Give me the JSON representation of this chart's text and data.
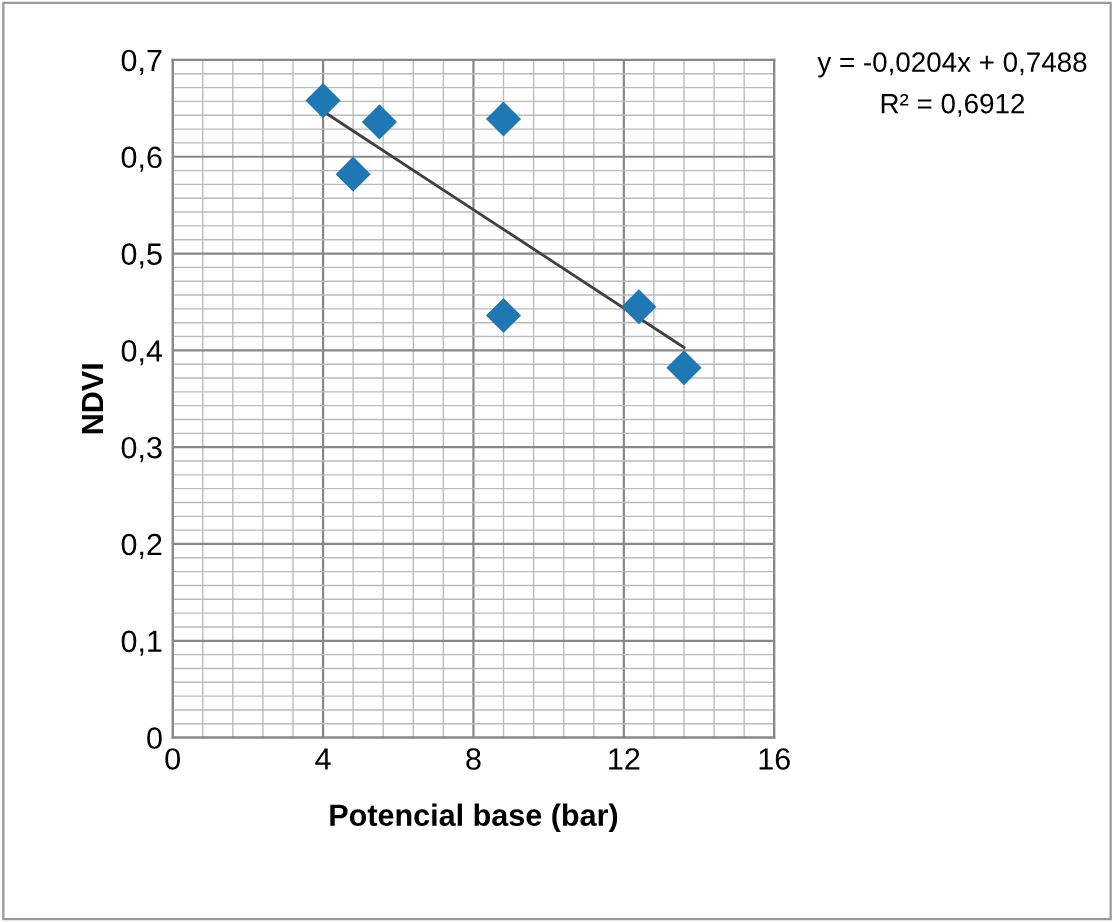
{
  "chart_data": {
    "type": "scatter",
    "xlabel": "Potencial base (bar)",
    "ylabel": "NDVI",
    "series": [
      {
        "color": "#1f77b4",
        "marker": "diamond",
        "x": [
          4.0,
          4.8,
          5.5,
          8.8,
          8.8,
          12.4,
          13.6
        ],
        "values": [
          0.658,
          0.582,
          0.636,
          0.639,
          0.436,
          0.445,
          0.382
        ]
      },
      {
        "type": "line",
        "color": "#404040",
        "marker": "none",
        "x": [
          4.0,
          13.6
        ],
        "values": [
          0.647,
          0.403
        ]
      }
    ],
    "xlim": [
      0,
      16
    ],
    "xticks": [
      0,
      4,
      8,
      12,
      16
    ],
    "ylim": [
      0,
      0.7
    ],
    "yticks": [
      {
        "value": 0,
        "label": "0"
      },
      {
        "value": 0.1,
        "label": "0,1"
      },
      {
        "value": 0.2,
        "label": "0,2"
      },
      {
        "value": 0.3,
        "label": "0,3"
      },
      {
        "value": 0.4,
        "label": "0,4"
      },
      {
        "value": 0.5,
        "label": "0,5"
      },
      {
        "value": 0.6,
        "label": "0,6"
      },
      {
        "value": 0.7,
        "label": "0,7"
      }
    ],
    "grid": true,
    "annotations": [
      "y = -0,0204x + 0,7488",
      "R² = 0,6912"
    ]
  }
}
